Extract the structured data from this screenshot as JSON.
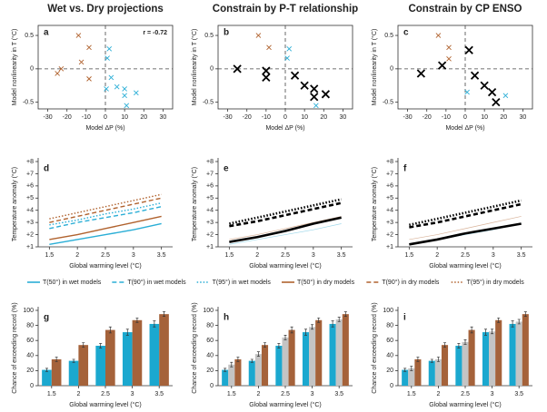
{
  "chart_data": [
    {
      "type": "scatter",
      "title": "Wet vs. Dry projections",
      "label": "a",
      "annotation": "r = -0.72",
      "xlabel": "Model ΔP (%)",
      "ylabel": "Model nonlinearity in T (°C)",
      "xlim": [
        -35,
        35
      ],
      "ylim": [
        -0.6,
        0.65
      ],
      "xticks": [
        -30,
        -20,
        -10,
        0,
        10,
        20,
        30
      ],
      "yticks": [
        -0.5,
        0,
        0.5
      ],
      "series": [
        {
          "color": "#b0622e",
          "marker": "x",
          "x": [
            -23,
            -25,
            -14,
            -12.5,
            -8.5,
            -8.5
          ],
          "values": [
            0,
            -0.07,
            0.5,
            0.1,
            0.32,
            -0.15
          ]
        },
        {
          "color": "#2aaed6",
          "marker": "x",
          "x": [
            1,
            2,
            0.5,
            6,
            10,
            10,
            11,
            16,
            3
          ],
          "values": [
            0.16,
            0.3,
            -0.3,
            -0.27,
            -0.3,
            -0.4,
            -0.55,
            -0.36,
            -0.13
          ]
        }
      ]
    },
    {
      "type": "scatter",
      "title": "Constrain by P-T relationship",
      "label": "b",
      "xlabel": "Model ΔP (%)",
      "ylabel": "Model nonlinearity in T (°C)",
      "xlim": [
        -35,
        35
      ],
      "ylim": [
        -0.6,
        0.65
      ],
      "xticks": [
        -30,
        -20,
        -10,
        0,
        10,
        20,
        30
      ],
      "yticks": [
        -0.5,
        0,
        0.5
      ],
      "series": [
        {
          "color": "#b0622e",
          "marker": "x",
          "x": [
            -14,
            -8.5
          ],
          "values": [
            0.5,
            0.32
          ]
        },
        {
          "color": "#2aaed6",
          "marker": "x",
          "x": [
            2,
            1,
            16
          ],
          "values": [
            0.3,
            0.16,
            -0.55
          ]
        },
        {
          "color": "#000000",
          "marker": "x-large",
          "x": [
            -25,
            -10,
            -10,
            5,
            10,
            15,
            15,
            21
          ],
          "values": [
            0,
            -0.03,
            -0.13,
            -0.1,
            -0.25,
            -0.3,
            -0.42,
            -0.38
          ]
        }
      ]
    },
    {
      "type": "scatter",
      "title": "Constrain by CP ENSO",
      "label": "c",
      "xlabel": "Model ΔP (%)",
      "ylabel": "Model nonlinearity in T (°C)",
      "xlim": [
        -35,
        35
      ],
      "ylim": [
        -0.6,
        0.65
      ],
      "xticks": [
        -30,
        -20,
        -10,
        0,
        10,
        20,
        30
      ],
      "yticks": [
        -0.5,
        0,
        0.5
      ],
      "series": [
        {
          "color": "#b0622e",
          "marker": "x",
          "x": [
            -14,
            -8.5,
            -8.5
          ],
          "values": [
            0.5,
            0.32,
            0.15
          ]
        },
        {
          "color": "#2aaed6",
          "marker": "x",
          "x": [
            1,
            21
          ],
          "values": [
            -0.35,
            -0.4
          ]
        },
        {
          "color": "#000000",
          "marker": "x-large",
          "x": [
            -23,
            -12,
            2,
            5,
            10,
            14,
            16
          ],
          "values": [
            -0.07,
            0.05,
            0.28,
            -0.1,
            -0.25,
            -0.35,
            -0.5
          ]
        }
      ]
    },
    {
      "type": "line",
      "label": "d",
      "xlabel": "Global warming level (°C)",
      "ylabel": "Temperature anomaly (°C)",
      "xlim": [
        1.3,
        3.7
      ],
      "ylim": [
        1,
        8
      ],
      "xticks": [
        1.5,
        2,
        2.5,
        3,
        3.5
      ],
      "yticks": [
        {
          "value": 1,
          "label": "+1"
        },
        {
          "value": 2,
          "label": "+2"
        },
        {
          "value": 3,
          "label": "+3"
        },
        {
          "value": 4,
          "label": "+4"
        },
        {
          "value": 5,
          "label": "+5"
        },
        {
          "value": 6,
          "label": "+6"
        },
        {
          "value": 7,
          "label": "+7"
        },
        {
          "value": 8,
          "label": "+8"
        }
      ],
      "x": [
        1.5,
        2,
        2.5,
        3,
        3.5
      ],
      "series": [
        {
          "name": "T(50°) in wet models",
          "color": "#2aaed6",
          "dash": "solid",
          "width": 1.4,
          "values": [
            1.2,
            1.6,
            2.0,
            2.4,
            2.9
          ]
        },
        {
          "name": "T(90°) in wet models",
          "color": "#2aaed6",
          "dash": "dashed",
          "width": 1.4,
          "values": [
            2.5,
            3.0,
            3.4,
            3.8,
            4.3
          ]
        },
        {
          "name": "T(95°) in wet models",
          "color": "#2aaed6",
          "dash": "dotted",
          "width": 1.4,
          "values": [
            2.8,
            3.2,
            3.7,
            4.1,
            4.6
          ]
        },
        {
          "name": "T(50°) in dry models",
          "color": "#b0622e",
          "dash": "solid",
          "width": 1.4,
          "values": [
            1.6,
            2.0,
            2.5,
            3.0,
            3.5
          ]
        },
        {
          "name": "T(90°) in dry models",
          "color": "#b0622e",
          "dash": "dashed",
          "width": 1.4,
          "values": [
            3.0,
            3.5,
            4.0,
            4.5,
            5.0
          ]
        },
        {
          "name": "T(95°) in dry models",
          "color": "#b0622e",
          "dash": "dotted",
          "width": 1.4,
          "values": [
            3.3,
            3.8,
            4.3,
            4.8,
            5.3
          ]
        }
      ]
    },
    {
      "type": "line",
      "label": "e",
      "xlabel": "Global warming level (°C)",
      "ylabel": "Temperature anomaly (°C)",
      "xlim": [
        1.3,
        3.7
      ],
      "ylim": [
        1,
        8
      ],
      "xticks": [
        1.5,
        2,
        2.5,
        3,
        3.5
      ],
      "yticks": [
        {
          "value": 1,
          "label": "+1"
        },
        {
          "value": 2,
          "label": "+2"
        },
        {
          "value": 3,
          "label": "+3"
        },
        {
          "value": 4,
          "label": "+4"
        },
        {
          "value": 5,
          "label": "+5"
        },
        {
          "value": 6,
          "label": "+6"
        },
        {
          "value": 7,
          "label": "+7"
        },
        {
          "value": 8,
          "label": "+8"
        }
      ],
      "x": [
        1.5,
        2,
        2.5,
        3,
        3.5
      ],
      "series": [
        {
          "color": "#9fd8ea",
          "dash": "solid",
          "width": 0.7,
          "values": [
            1.2,
            1.6,
            2.0,
            2.4,
            2.9
          ]
        },
        {
          "color": "#d9b49b",
          "dash": "solid",
          "width": 0.7,
          "values": [
            1.6,
            2.0,
            2.5,
            3.0,
            3.5
          ]
        },
        {
          "color": "#000000",
          "dash": "solid",
          "width": 2.6,
          "values": [
            1.4,
            1.8,
            2.3,
            2.9,
            3.4
          ]
        },
        {
          "color": "#000000",
          "dash": "dashed",
          "width": 2.6,
          "values": [
            2.7,
            3.1,
            3.6,
            4.1,
            4.6
          ]
        },
        {
          "color": "#000000",
          "dash": "dotted",
          "width": 2.6,
          "values": [
            2.9,
            3.4,
            3.9,
            4.4,
            4.9
          ]
        }
      ]
    },
    {
      "type": "line",
      "label": "f",
      "xlabel": "Global warming level (°C)",
      "ylabel": "Temperature anomaly (°C)",
      "xlim": [
        1.3,
        3.7
      ],
      "ylim": [
        1,
        8
      ],
      "xticks": [
        1.5,
        2,
        2.5,
        3,
        3.5
      ],
      "yticks": [
        {
          "value": 1,
          "label": "+1"
        },
        {
          "value": 2,
          "label": "+2"
        },
        {
          "value": 3,
          "label": "+3"
        },
        {
          "value": 4,
          "label": "+4"
        },
        {
          "value": 5,
          "label": "+5"
        },
        {
          "value": 6,
          "label": "+6"
        },
        {
          "value": 7,
          "label": "+7"
        },
        {
          "value": 8,
          "label": "+8"
        }
      ],
      "x": [
        1.5,
        2,
        2.5,
        3,
        3.5
      ],
      "series": [
        {
          "color": "#9fd8ea",
          "dash": "solid",
          "width": 0.7,
          "values": [
            1.2,
            1.6,
            2.0,
            2.4,
            2.9
          ]
        },
        {
          "color": "#d9b49b",
          "dash": "solid",
          "width": 0.7,
          "values": [
            1.6,
            2.0,
            2.5,
            3.0,
            3.5
          ]
        },
        {
          "color": "#000000",
          "dash": "solid",
          "width": 2.6,
          "values": [
            1.2,
            1.6,
            2.1,
            2.5,
            2.9
          ]
        },
        {
          "color": "#000000",
          "dash": "dashed",
          "width": 2.6,
          "values": [
            2.6,
            3.0,
            3.5,
            4.0,
            4.5
          ]
        },
        {
          "color": "#000000",
          "dash": "dotted",
          "width": 2.6,
          "values": [
            2.8,
            3.3,
            3.8,
            4.3,
            4.8
          ]
        }
      ]
    },
    {
      "type": "bar",
      "label": "g",
      "xlabel": "Global warming level (°C)",
      "ylabel": "Chance of exceeding record (%)",
      "ylim": [
        0,
        100
      ],
      "yticks": [
        0,
        20,
        40,
        60,
        80,
        100
      ],
      "categories": [
        "1.5",
        "2",
        "2.5",
        "3",
        "3.5"
      ],
      "series": [
        {
          "color": "#1ba8cf",
          "values": [
            21,
            33,
            53,
            71,
            82
          ],
          "errors": [
            2,
            2,
            3,
            4,
            4
          ]
        },
        {
          "color": "#a5623a",
          "values": [
            35,
            54,
            74,
            87,
            95
          ],
          "errors": [
            3,
            3,
            4,
            3,
            3
          ]
        }
      ]
    },
    {
      "type": "bar",
      "label": "h",
      "xlabel": "Global warming level (°C)",
      "ylabel": "Chance of exceeding record (%)",
      "ylim": [
        0,
        100
      ],
      "yticks": [
        0,
        20,
        40,
        60,
        80,
        100
      ],
      "categories": [
        "1.5",
        "2",
        "2.5",
        "3",
        "3.5"
      ],
      "series": [
        {
          "color": "#1ba8cf",
          "values": [
            21,
            33,
            53,
            71,
            82
          ],
          "errors": [
            2,
            2,
            3,
            4,
            4
          ]
        },
        {
          "color": "#c4c4c4",
          "values": [
            28,
            42,
            64,
            78,
            88
          ],
          "errors": [
            3,
            3,
            3,
            3,
            3
          ]
        },
        {
          "color": "#a5623a",
          "values": [
            35,
            54,
            74,
            87,
            95
          ],
          "errors": [
            3,
            3,
            4,
            3,
            3
          ]
        }
      ]
    },
    {
      "type": "bar",
      "label": "i",
      "xlabel": "Global warming level (°C)",
      "ylabel": "Chance of exceeding record (%)",
      "ylim": [
        0,
        100
      ],
      "yticks": [
        0,
        20,
        40,
        60,
        80,
        100
      ],
      "categories": [
        "1.5",
        "2",
        "2.5",
        "3",
        "3.5"
      ],
      "series": [
        {
          "color": "#1ba8cf",
          "values": [
            21,
            33,
            53,
            71,
            82
          ],
          "errors": [
            2,
            2,
            3,
            4,
            4
          ]
        },
        {
          "color": "#c4c4c4",
          "values": [
            23,
            35,
            58,
            72,
            85
          ],
          "errors": [
            3,
            3,
            3,
            3,
            3
          ]
        },
        {
          "color": "#a5623a",
          "values": [
            35,
            54,
            74,
            87,
            95
          ],
          "errors": [
            3,
            3,
            4,
            3,
            3
          ]
        }
      ]
    }
  ]
}
